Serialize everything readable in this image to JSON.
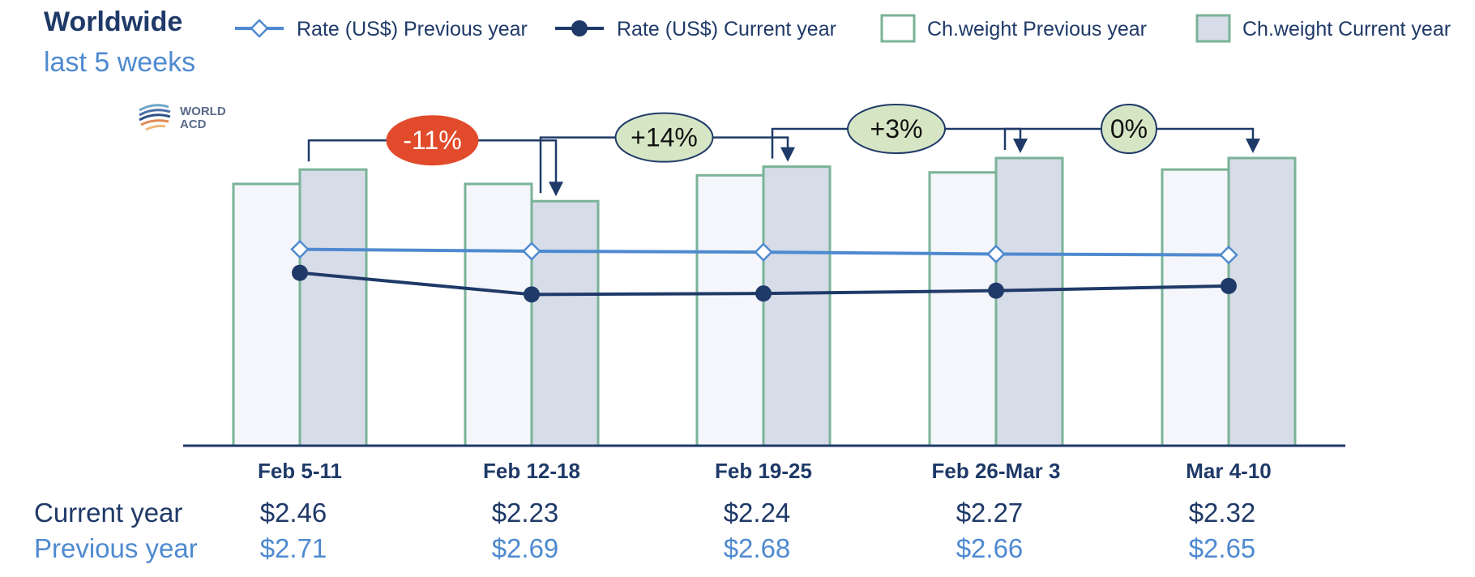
{
  "header": {
    "title": "Worldwide",
    "subtitle": "last 5 weeks"
  },
  "logo": {
    "line1": "WORLD",
    "line2": "ACD"
  },
  "colors": {
    "navy": "#1f3a68",
    "blue": "#4f8ad0",
    "green_outline": "#7ab397",
    "bar_prev_fill": "#f4f6fb",
    "bar_cur_fill": "#d6dce8",
    "neg_badge": "#e14b2b",
    "pos_badge": "#d6e6c4"
  },
  "chart_data": {
    "type": "bar",
    "categories": [
      "Feb 5-11",
      "Feb 12-18",
      "Feb 19-25",
      "Feb 26-Mar 3",
      "Mar 4-10"
    ],
    "series": [
      {
        "name": "Rate (US$) Previous year",
        "kind": "line",
        "values": [
          2.71,
          2.69,
          2.68,
          2.66,
          2.65
        ]
      },
      {
        "name": "Rate (US$) Current year",
        "kind": "line",
        "values": [
          2.46,
          2.23,
          2.24,
          2.27,
          2.32
        ]
      },
      {
        "name": "Ch.weight Previous year",
        "kind": "bar",
        "values": [
          0.91,
          0.91,
          0.94,
          0.95,
          0.96
        ]
      },
      {
        "name": "Ch.weight Current year",
        "kind": "bar",
        "values": [
          0.96,
          0.85,
          0.97,
          1.0,
          1.0
        ]
      }
    ],
    "changes": [
      "-11%",
      "+14%",
      "+3%",
      "0%"
    ],
    "table": {
      "current_label": "Current year",
      "previous_label": "Previous year",
      "current": [
        "$2.46",
        "$2.23",
        "$2.24",
        "$2.27",
        "$2.32"
      ],
      "previous": [
        "$2.71",
        "$2.69",
        "$2.68",
        "$2.66",
        "$2.65"
      ]
    },
    "legend_position": "top",
    "grid": false
  }
}
